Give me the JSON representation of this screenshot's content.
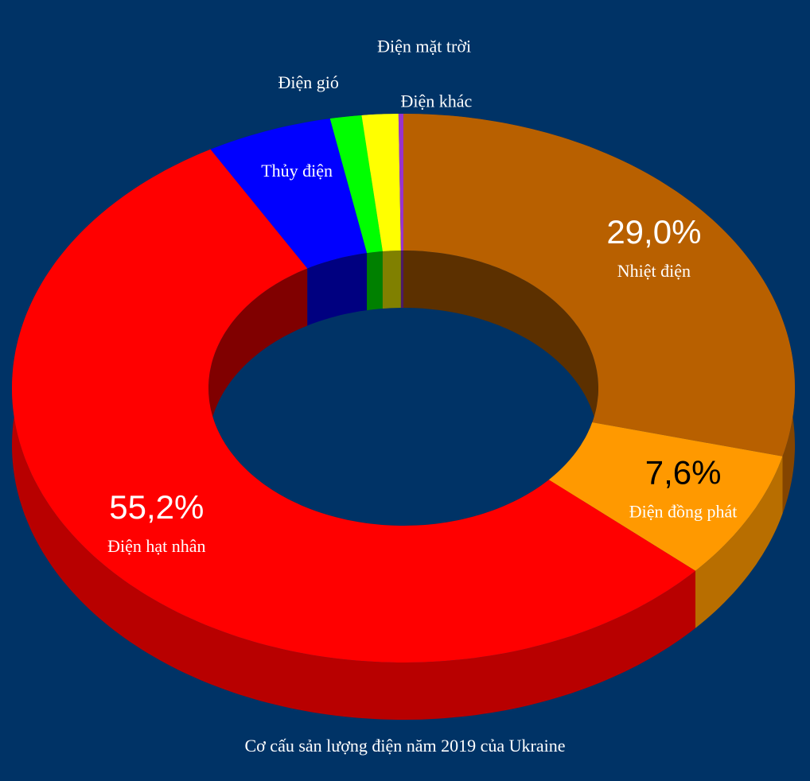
{
  "chart_data": {
    "type": "donut",
    "title": "Cơ cấu sản lượng điện năm 2019 của Ukraine",
    "categories": [
      "Nhiệt điện",
      "Điện đồng phát",
      "Điện hạt nhân",
      "Thủy điện",
      "Điện gió",
      "Điện mặt trời",
      "Điện khác"
    ],
    "values": [
      29.0,
      7.6,
      55.2,
      5.2,
      1.3,
      1.5,
      0.2
    ],
    "value_labels": [
      "29,0%",
      "7,6%",
      "55,2%",
      null,
      null,
      null,
      null
    ],
    "colors": [
      "#b86000",
      "#ff9900",
      "#ff0000",
      "#0000ff",
      "#00ff00",
      "#ffff00",
      "#9933cc"
    ]
  }
}
